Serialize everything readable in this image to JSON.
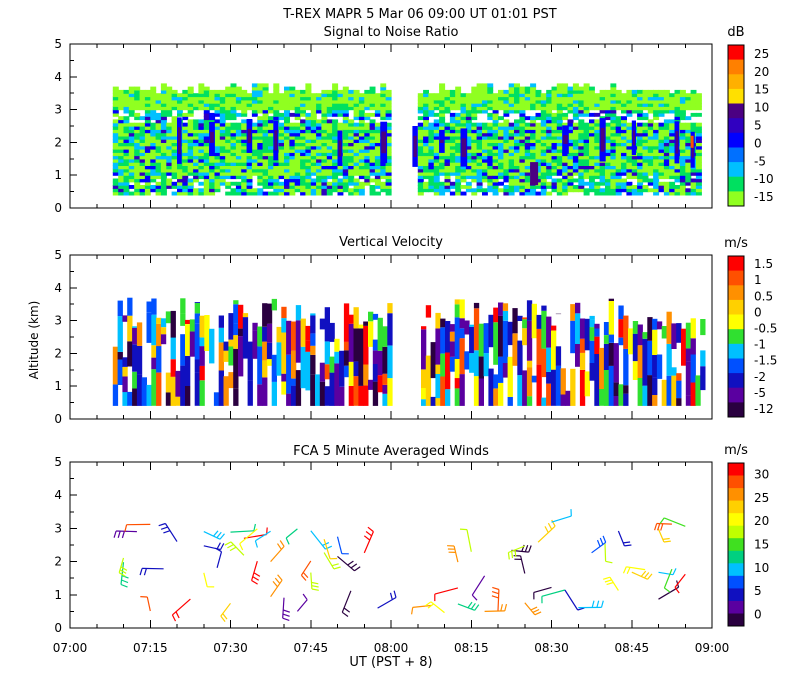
{
  "header": {
    "line1": "T-REX   MAPR   5 Mar 06   09:00 UT   01:01   PST"
  },
  "chart_data": [
    {
      "type": "heatmap",
      "title": "Signal to Noise Ratio",
      "ylabel": "",
      "ylim": [
        0,
        5
      ],
      "yticks": [
        "0",
        "1",
        "2",
        "3",
        "4",
        "5"
      ],
      "colorbar": {
        "unit": "dB",
        "labels": [
          "25",
          "20",
          "15",
          "10",
          "5",
          "0",
          "-5",
          "-10",
          "-15"
        ],
        "colors": [
          "#ff0000",
          "#ff8000",
          "#ffb000",
          "#ffe000",
          "#4b0082",
          "#3000c0",
          "#0000ff",
          "#0070ff",
          "#00c0ff",
          "#00e060",
          "#90ff20"
        ]
      },
      "data_gap": [
        "08:00",
        "08:05"
      ],
      "description": "Radar signal-to-noise returns between about 0.4 and 3.8 km altitude"
    },
    {
      "type": "heatmap",
      "title": "Vertical Velocity",
      "ylabel": "Altitude (km)",
      "ylim": [
        0,
        5
      ],
      "yticks": [
        "0",
        "1",
        "2",
        "3",
        "4",
        "5"
      ],
      "colorbar": {
        "unit": "m/s",
        "labels": [
          "1.5",
          "1",
          "0.5",
          "0",
          "-0.5",
          "-1",
          "-1.5",
          "-2",
          "-5",
          "-12"
        ],
        "colors": [
          "#ff0000",
          "#ff5000",
          "#ff9000",
          "#ffd000",
          "#ffff00",
          "#30e030",
          "#00c0ff",
          "#0050ff",
          "#1010c0",
          "#5a00a0",
          "#2a0040"
        ]
      },
      "data_gap": [
        "08:00",
        "08:05"
      ]
    },
    {
      "type": "scatter",
      "title": "FCA 5 Minute Averaged Winds",
      "ylabel": "",
      "ylim": [
        0,
        5
      ],
      "yticks": [
        "0",
        "1",
        "2",
        "3",
        "4",
        "5"
      ],
      "colorbar": {
        "unit": "m/s",
        "labels": [
          "30",
          "25",
          "20",
          "15",
          "10",
          "5",
          "0"
        ],
        "colors": [
          "#ff0000",
          "#ff5000",
          "#ff9000",
          "#ffd000",
          "#ffff00",
          "#c0ff00",
          "#40e020",
          "#00d080",
          "#00c0ff",
          "#0050ff",
          "#1010c0",
          "#5a00a0",
          "#2a0040"
        ]
      }
    }
  ],
  "xaxis": {
    "label": "UT  (PST + 8)",
    "xlim": [
      "07:00",
      "09:00"
    ],
    "ticks": [
      "07:00",
      "07:15",
      "07:30",
      "07:45",
      "08:00",
      "08:15",
      "08:30",
      "08:45",
      "09:00"
    ]
  }
}
